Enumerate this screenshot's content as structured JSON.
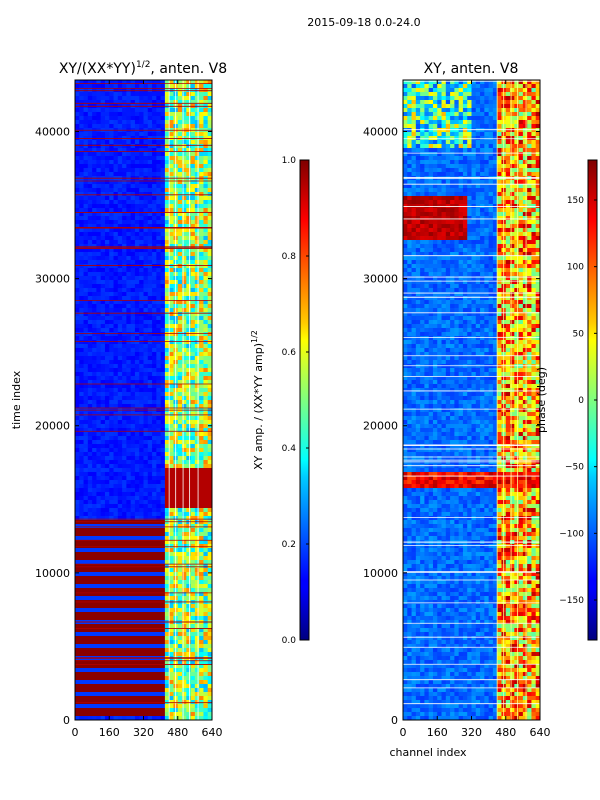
{
  "suptitle": "2015-09-18 0.0-24.0",
  "chart_data": [
    {
      "type": "heatmap",
      "title": "XY/(XX*YY)",
      "title_superscript": "1/2",
      "title_suffix": ", anten. V8",
      "xlabel": "",
      "ylabel": "time index",
      "xlim": [
        0,
        640
      ],
      "ylim": [
        0,
        43500
      ],
      "xticks": [
        0,
        160,
        320,
        480,
        640
      ],
      "yticks": [
        0,
        10000,
        20000,
        30000,
        40000
      ],
      "colorbar": {
        "label": "XY amp. / (XX*YY amp)",
        "label_superscript": "1/2",
        "range": [
          0.0,
          1.0
        ],
        "ticks": [
          "0.0",
          "0.2",
          "0.4",
          "0.6",
          "0.8",
          "1.0"
        ]
      },
      "colormap": "jet",
      "saturated_band_time_range": [
        0,
        13500
      ]
    },
    {
      "type": "heatmap",
      "title": "XY, anten. V8",
      "xlabel": "channel index",
      "ylabel": "",
      "xlim": [
        0,
        640
      ],
      "ylim": [
        0,
        43500
      ],
      "xticks": [
        0,
        160,
        320,
        480,
        640
      ],
      "yticks": [
        0,
        10000,
        20000,
        30000,
        40000
      ],
      "colorbar": {
        "label": "phase (deg)",
        "range": [
          -180,
          180
        ],
        "ticks": [
          "150",
          "100",
          "50",
          "0",
          "−50",
          "−100",
          "−150"
        ]
      },
      "colormap": "jet"
    }
  ]
}
